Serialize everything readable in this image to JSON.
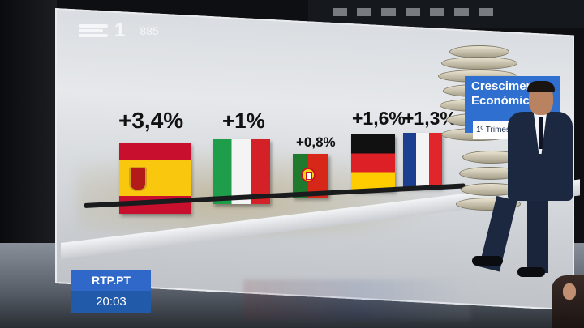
{
  "channel": {
    "logo_icon": "rtp-stripes-icon",
    "number": "1",
    "code": "885"
  },
  "graphic": {
    "title_line1": "Crescimento",
    "title_line2": "Económico",
    "subtitle": "1º Trimestre",
    "countries": [
      {
        "country": "Spain",
        "flag_icon": "spain-flag-icon",
        "value_label": "+3,4%",
        "value": 3.4
      },
      {
        "country": "Italy",
        "flag_icon": "italy-flag-icon",
        "value_label": "+1%",
        "value": 1.0
      },
      {
        "country": "Portugal",
        "flag_icon": "portugal-flag-icon",
        "value_label": "+0,8%",
        "value": 0.8
      },
      {
        "country": "Germany",
        "flag_icon": "germany-flag-icon",
        "value_label": "+1,6%",
        "value": 1.6
      },
      {
        "country": "France",
        "flag_icon": "france-flag-icon",
        "value_label": "+1,3%",
        "value": 1.3
      }
    ]
  },
  "lower_third": {
    "site": "RTP.PT",
    "time": "20:03"
  },
  "colors": {
    "brand_blue": "#2f6fd0",
    "time_blue": "#215aa8"
  }
}
